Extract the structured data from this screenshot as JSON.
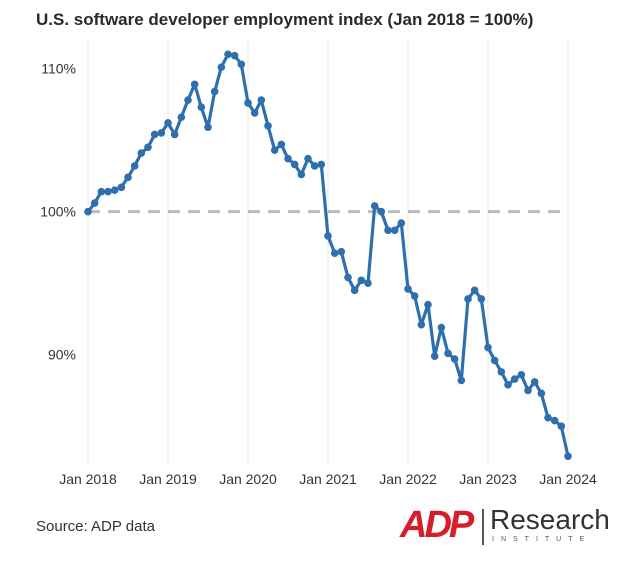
{
  "chart_data": {
    "type": "line",
    "title": "U.S. software developer employment index (Jan 2018 = 100%)",
    "source": "Source: ADP data",
    "x_tick_labels": [
      "Jan 2018",
      "Jan 2019",
      "Jan 2020",
      "Jan 2021",
      "Jan 2022",
      "Jan 2023",
      "Jan 2024"
    ],
    "y_tick_labels": [
      "90%",
      "100%",
      "110%"
    ],
    "y_ticks": [
      90,
      100,
      110
    ],
    "ylim": [
      82.5,
      112
    ],
    "x_range_months": [
      0,
      72
    ],
    "reference_line": {
      "value": 100,
      "style": "dashed",
      "color": "#bbbbbb"
    },
    "grid": "vertical",
    "line_color": "#2e6fad",
    "series": [
      {
        "x": [
          0,
          1,
          2,
          3,
          4,
          5,
          6,
          7,
          8,
          9,
          10,
          11,
          12,
          13,
          14,
          15,
          16,
          17,
          18,
          19,
          20,
          21,
          22,
          23,
          24,
          25,
          26,
          27,
          28,
          29,
          30,
          31,
          32,
          33,
          34,
          35,
          36,
          37,
          38,
          39,
          40,
          41,
          42,
          43,
          44,
          45,
          46,
          47,
          48,
          49,
          50,
          51,
          52,
          53,
          54,
          55,
          56,
          57,
          58,
          59,
          60,
          61,
          62,
          63,
          64,
          65,
          66,
          67,
          68,
          69,
          70,
          71,
          72
        ],
        "values": [
          100.0,
          100.6,
          101.4,
          101.4,
          101.5,
          101.7,
          102.4,
          103.2,
          104.1,
          104.5,
          105.4,
          105.5,
          106.2,
          105.4,
          106.6,
          107.8,
          108.9,
          107.3,
          105.9,
          108.4,
          110.1,
          111.0,
          110.9,
          110.3,
          107.6,
          106.9,
          107.8,
          106.0,
          104.3,
          104.7,
          103.7,
          103.3,
          102.6,
          103.7,
          103.2,
          103.3,
          98.3,
          97.1,
          97.2,
          95.4,
          94.5,
          95.2,
          95.0,
          100.4,
          100.0,
          98.7,
          98.7,
          99.2,
          94.6,
          94.1,
          92.1,
          93.5,
          89.9,
          91.9,
          90.1,
          89.7,
          88.2,
          93.9,
          94.5,
          93.9,
          90.5,
          89.6,
          88.8,
          87.9,
          88.3,
          88.6,
          87.5,
          88.1,
          87.3,
          85.6,
          85.4,
          85.0,
          82.9
        ]
      }
    ]
  },
  "logo": {
    "mark": "ADP",
    "word": "Research",
    "sub": "INSTITUTE"
  }
}
